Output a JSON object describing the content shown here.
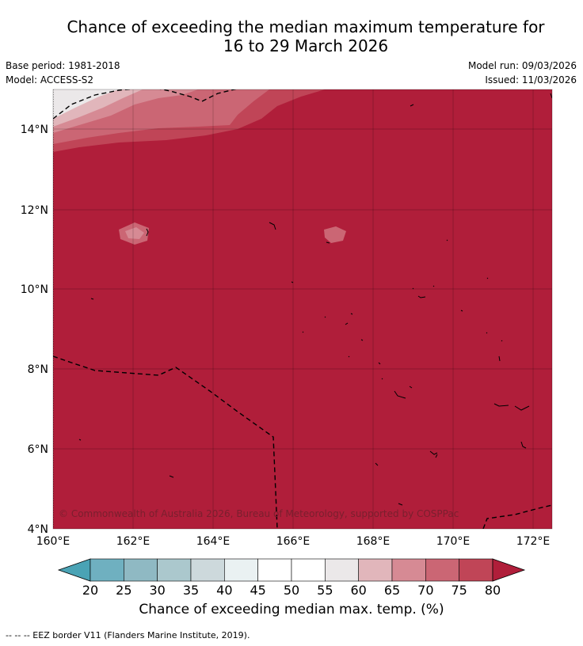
{
  "title": {
    "line1": "Chance of exceeding the median maximum temperature for",
    "line2": "16 to 29 March 2026"
  },
  "meta": {
    "base_period": "Base period: 1981-2018",
    "model": "Model: ACCESS-S2",
    "model_run": "Model run: 09/03/2026",
    "issued": "Issued: 11/03/2026"
  },
  "map": {
    "lon_labels": [
      "160°E",
      "162°E",
      "164°E",
      "166°E",
      "168°E",
      "170°E",
      "172°E"
    ],
    "lat_labels": [
      "14°N",
      "12°N",
      "10°N",
      "8°N",
      "6°N",
      "4°N"
    ],
    "lon_range": [
      160,
      172.5
    ],
    "lat_range": [
      4,
      15
    ],
    "copyright": "© Commonwealth of Australia 2026, Bureau of Meteorology, supported by COSPPac"
  },
  "colorbar": {
    "ticks": [
      "20",
      "25",
      "30",
      "35",
      "40",
      "45",
      "50",
      "55",
      "60",
      "65",
      "70",
      "75",
      "80"
    ],
    "colors": [
      "#4aa3b5",
      "#6fb0c0",
      "#8fb9c3",
      "#abc8cd",
      "#cdd9dc",
      "#eaf1f2",
      "#ffffff",
      "#ffffff",
      "#ebe8e9",
      "#e1b6bb",
      "#d68a94",
      "#cb6674",
      "#c04557",
      "#b01e3a"
    ],
    "label": "Chance of exceeding median max. temp. (%)"
  },
  "footer": {
    "text": "--  --  -- EEZ border V11 (Flanders Marine Institute, 2019)."
  }
}
